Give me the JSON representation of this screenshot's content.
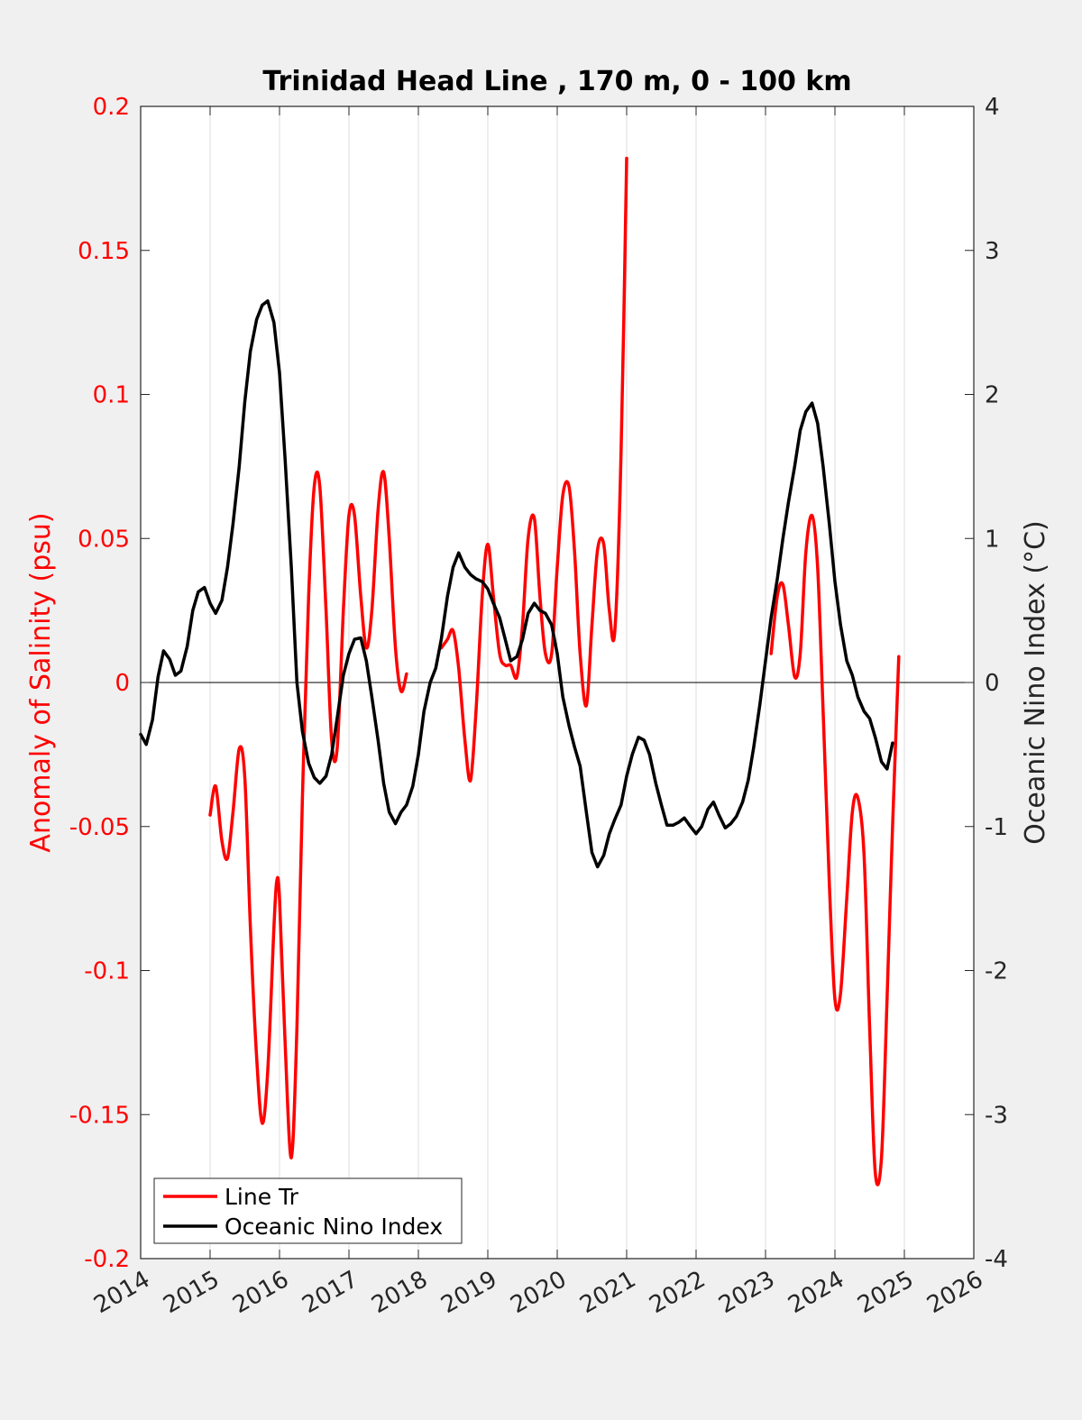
{
  "chart_data": {
    "type": "line",
    "title": "Trinidad Head Line , 170 m, 0 - 100 km",
    "ylabel_left": "Anomaly of Salinity (psu)",
    "ylabel_right": "Oceanic Nino Index (°C)",
    "xlim": [
      2014,
      2026
    ],
    "ylim_left": [
      -0.2,
      0.2
    ],
    "ylim_right": [
      -4,
      4
    ],
    "x_ticks": [
      "2014",
      "2015",
      "2016",
      "2017",
      "2018",
      "2019",
      "2020",
      "2021",
      "2022",
      "2023",
      "2024",
      "2025",
      "2026"
    ],
    "y_left_ticks": [
      "-0.2",
      "-0.15",
      "-0.1",
      "-0.05",
      "0",
      "0.05",
      "0.1",
      "0.15",
      "0.2"
    ],
    "y_right_ticks": [
      "-4",
      "-3",
      "-2",
      "-1",
      "0",
      "1",
      "2",
      "3",
      "4"
    ],
    "grid": "vertical",
    "legend_position": "bottom-left",
    "colors": {
      "salinity": "#ff0000",
      "oni": "#000000",
      "left_axis": "#ff0000",
      "right_axis": "#262626"
    },
    "series": [
      {
        "name": "Line Tr",
        "axis": "left",
        "color": "#ff0000",
        "segments": [
          [
            [
              2015.0,
              -0.046
            ],
            [
              2015.08,
              -0.036
            ],
            [
              2015.17,
              -0.055
            ],
            [
              2015.25,
              -0.061
            ],
            [
              2015.33,
              -0.045
            ],
            [
              2015.42,
              -0.023
            ],
            [
              2015.5,
              -0.033
            ],
            [
              2015.58,
              -0.085
            ],
            [
              2015.67,
              -0.13
            ],
            [
              2015.75,
              -0.153
            ],
            [
              2015.83,
              -0.135
            ],
            [
              2015.92,
              -0.085
            ],
            [
              2015.96,
              -0.069
            ],
            [
              2016.0,
              -0.075
            ],
            [
              2016.08,
              -0.125
            ],
            [
              2016.17,
              -0.165
            ],
            [
              2016.25,
              -0.12
            ],
            [
              2016.33,
              -0.04
            ],
            [
              2016.42,
              0.03
            ],
            [
              2016.5,
              0.068
            ],
            [
              2016.58,
              0.068
            ],
            [
              2016.67,
              0.025
            ],
            [
              2016.75,
              -0.02
            ],
            [
              2016.83,
              -0.023
            ],
            [
              2016.92,
              0.025
            ],
            [
              2017.0,
              0.058
            ],
            [
              2017.08,
              0.058
            ],
            [
              2017.17,
              0.03
            ],
            [
              2017.25,
              0.012
            ],
            [
              2017.33,
              0.025
            ],
            [
              2017.42,
              0.06
            ],
            [
              2017.5,
              0.073
            ],
            [
              2017.58,
              0.05
            ],
            [
              2017.67,
              0.012
            ],
            [
              2017.75,
              -0.003
            ],
            [
              2017.83,
              0.003
            ]
          ],
          [
            [
              2018.33,
              0.012
            ],
            [
              2018.42,
              0.015
            ],
            [
              2018.5,
              0.018
            ],
            [
              2018.58,
              0.005
            ],
            [
              2018.67,
              -0.02
            ],
            [
              2018.75,
              -0.034
            ],
            [
              2018.83,
              -0.01
            ],
            [
              2018.92,
              0.03
            ],
            [
              2019.0,
              0.048
            ],
            [
              2019.08,
              0.03
            ],
            [
              2019.17,
              0.01
            ],
            [
              2019.25,
              0.006
            ],
            [
              2019.33,
              0.006
            ],
            [
              2019.42,
              0.002
            ],
            [
              2019.5,
              0.02
            ],
            [
              2019.58,
              0.05
            ],
            [
              2019.67,
              0.057
            ],
            [
              2019.75,
              0.03
            ],
            [
              2019.83,
              0.01
            ],
            [
              2019.92,
              0.01
            ],
            [
              2020.0,
              0.04
            ],
            [
              2020.08,
              0.065
            ],
            [
              2020.17,
              0.068
            ],
            [
              2020.25,
              0.045
            ],
            [
              2020.33,
              0.01
            ],
            [
              2020.42,
              -0.008
            ],
            [
              2020.5,
              0.02
            ],
            [
              2020.58,
              0.046
            ],
            [
              2020.67,
              0.048
            ],
            [
              2020.75,
              0.025
            ],
            [
              2020.83,
              0.018
            ],
            [
              2020.92,
              0.08
            ],
            [
              2021.0,
              0.182
            ]
          ],
          [
            [
              2023.08,
              0.01
            ],
            [
              2023.17,
              0.03
            ],
            [
              2023.25,
              0.034
            ],
            [
              2023.33,
              0.02
            ],
            [
              2023.42,
              0.002
            ],
            [
              2023.5,
              0.01
            ],
            [
              2023.58,
              0.045
            ],
            [
              2023.67,
              0.058
            ],
            [
              2023.75,
              0.04
            ],
            [
              2023.83,
              -0.01
            ],
            [
              2023.92,
              -0.07
            ],
            [
              2024.0,
              -0.11
            ],
            [
              2024.08,
              -0.108
            ],
            [
              2024.17,
              -0.075
            ],
            [
              2024.25,
              -0.045
            ],
            [
              2024.33,
              -0.04
            ],
            [
              2024.42,
              -0.06
            ],
            [
              2024.5,
              -0.12
            ],
            [
              2024.58,
              -0.17
            ],
            [
              2024.67,
              -0.165
            ],
            [
              2024.75,
              -0.11
            ],
            [
              2024.83,
              -0.05
            ],
            [
              2024.92,
              0.009
            ]
          ]
        ]
      },
      {
        "name": "Oceanic Nino Index",
        "axis": "right",
        "color": "#000000",
        "segments": [
          [
            [
              2014.0,
              -0.36
            ],
            [
              2014.08,
              -0.43
            ],
            [
              2014.17,
              -0.26
            ],
            [
              2014.25,
              0.04
            ],
            [
              2014.33,
              0.22
            ],
            [
              2014.42,
              0.16
            ],
            [
              2014.5,
              0.05
            ],
            [
              2014.58,
              0.08
            ],
            [
              2014.67,
              0.25
            ],
            [
              2014.75,
              0.5
            ],
            [
              2014.83,
              0.63
            ],
            [
              2014.92,
              0.66
            ],
            [
              2015.0,
              0.55
            ],
            [
              2015.08,
              0.48
            ],
            [
              2015.17,
              0.57
            ],
            [
              2015.25,
              0.8
            ],
            [
              2015.33,
              1.1
            ],
            [
              2015.42,
              1.5
            ],
            [
              2015.5,
              1.95
            ],
            [
              2015.58,
              2.3
            ],
            [
              2015.67,
              2.52
            ],
            [
              2015.75,
              2.62
            ],
            [
              2015.83,
              2.65
            ],
            [
              2015.92,
              2.5
            ],
            [
              2016.0,
              2.15
            ],
            [
              2016.08,
              1.55
            ],
            [
              2016.17,
              0.8
            ],
            [
              2016.25,
              0.0
            ],
            [
              2016.33,
              -0.34
            ],
            [
              2016.42,
              -0.56
            ],
            [
              2016.5,
              -0.66
            ],
            [
              2016.58,
              -0.7
            ],
            [
              2016.67,
              -0.65
            ],
            [
              2016.75,
              -0.5
            ],
            [
              2016.83,
              -0.25
            ],
            [
              2016.92,
              0.05
            ],
            [
              2017.0,
              0.2
            ],
            [
              2017.08,
              0.3
            ],
            [
              2017.17,
              0.31
            ],
            [
              2017.25,
              0.15
            ],
            [
              2017.33,
              -0.1
            ],
            [
              2017.42,
              -0.4
            ],
            [
              2017.5,
              -0.7
            ],
            [
              2017.58,
              -0.9
            ],
            [
              2017.67,
              -0.98
            ],
            [
              2017.75,
              -0.9
            ],
            [
              2017.83,
              -0.85
            ],
            [
              2017.92,
              -0.72
            ],
            [
              2018.0,
              -0.5
            ],
            [
              2018.08,
              -0.2
            ],
            [
              2018.17,
              0.0
            ],
            [
              2018.25,
              0.1
            ],
            [
              2018.33,
              0.3
            ],
            [
              2018.42,
              0.6
            ],
            [
              2018.5,
              0.8
            ],
            [
              2018.58,
              0.9
            ],
            [
              2018.67,
              0.8
            ],
            [
              2018.75,
              0.75
            ],
            [
              2018.83,
              0.72
            ],
            [
              2018.92,
              0.7
            ],
            [
              2019.0,
              0.65
            ],
            [
              2019.08,
              0.55
            ],
            [
              2019.17,
              0.45
            ],
            [
              2019.25,
              0.3
            ],
            [
              2019.33,
              0.15
            ],
            [
              2019.42,
              0.18
            ],
            [
              2019.5,
              0.3
            ],
            [
              2019.58,
              0.48
            ],
            [
              2019.67,
              0.55
            ],
            [
              2019.75,
              0.5
            ],
            [
              2019.83,
              0.48
            ],
            [
              2019.92,
              0.4
            ],
            [
              2020.0,
              0.2
            ],
            [
              2020.08,
              -0.1
            ],
            [
              2020.17,
              -0.3
            ],
            [
              2020.25,
              -0.45
            ],
            [
              2020.33,
              -0.58
            ],
            [
              2020.42,
              -0.9
            ],
            [
              2020.5,
              -1.18
            ],
            [
              2020.58,
              -1.28
            ],
            [
              2020.67,
              -1.2
            ],
            [
              2020.75,
              -1.05
            ],
            [
              2020.83,
              -0.95
            ],
            [
              2020.92,
              -0.85
            ],
            [
              2021.0,
              -0.65
            ],
            [
              2021.08,
              -0.5
            ],
            [
              2021.17,
              -0.38
            ],
            [
              2021.25,
              -0.4
            ],
            [
              2021.33,
              -0.5
            ],
            [
              2021.42,
              -0.7
            ],
            [
              2021.5,
              -0.85
            ],
            [
              2021.58,
              -0.99
            ],
            [
              2021.67,
              -0.99
            ],
            [
              2021.75,
              -0.97
            ],
            [
              2021.83,
              -0.94
            ],
            [
              2021.92,
              -1.0
            ],
            [
              2022.0,
              -1.05
            ],
            [
              2022.08,
              -1.0
            ],
            [
              2022.17,
              -0.88
            ],
            [
              2022.25,
              -0.83
            ],
            [
              2022.33,
              -0.92
            ],
            [
              2022.42,
              -1.01
            ],
            [
              2022.5,
              -0.98
            ],
            [
              2022.58,
              -0.93
            ],
            [
              2022.67,
              -0.83
            ],
            [
              2022.75,
              -0.68
            ],
            [
              2022.83,
              -0.45
            ],
            [
              2022.92,
              -0.15
            ],
            [
              2023.0,
              0.15
            ],
            [
              2023.08,
              0.45
            ],
            [
              2023.17,
              0.72
            ],
            [
              2023.25,
              1.0
            ],
            [
              2023.33,
              1.25
            ],
            [
              2023.42,
              1.5
            ],
            [
              2023.5,
              1.75
            ],
            [
              2023.58,
              1.88
            ],
            [
              2023.67,
              1.94
            ],
            [
              2023.75,
              1.8
            ],
            [
              2023.83,
              1.5
            ],
            [
              2023.92,
              1.1
            ],
            [
              2024.0,
              0.7
            ],
            [
              2024.08,
              0.4
            ],
            [
              2024.17,
              0.15
            ],
            [
              2024.25,
              0.05
            ],
            [
              2024.33,
              -0.1
            ],
            [
              2024.42,
              -0.2
            ],
            [
              2024.5,
              -0.25
            ],
            [
              2024.58,
              -0.38
            ],
            [
              2024.67,
              -0.55
            ],
            [
              2024.75,
              -0.6
            ],
            [
              2024.83,
              -0.42
            ]
          ]
        ]
      }
    ]
  }
}
